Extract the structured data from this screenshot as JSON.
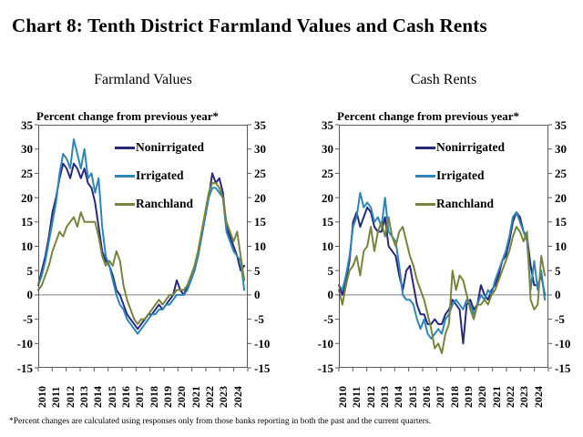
{
  "page_title": "Chart 8: Tenth District Farmland Values and Cash Rents",
  "footnote": "*Percent changes are calculated using responses only from those banks reporting in both the past and the current quarters.",
  "colors": {
    "nonirrigated": "#29297B",
    "irrigated": "#2E86B8",
    "ranchland": "#76843D",
    "axis": "#595959",
    "zero_line": "#808080",
    "text": "#000000"
  },
  "chart_data": [
    {
      "type": "line",
      "title": "Farmland Values",
      "axis_label": "Percent change from previous year*",
      "ylim": [
        -15,
        35
      ],
      "ytick_step": 5,
      "grid": false,
      "legend_position": "upper-right-inside",
      "x_tick_labels": [
        "2010",
        "2011",
        "2012",
        "2013",
        "2014",
        "2015",
        "2016",
        "2017",
        "2018",
        "2019",
        "2020",
        "2021",
        "2022",
        "2023",
        "2024"
      ],
      "x_frequency": "quarterly",
      "series": [
        {
          "name": "Nonirrigated",
          "color_key": "nonirrigated",
          "values": [
            2,
            5,
            8,
            12,
            17,
            20,
            24,
            27,
            26,
            24,
            27,
            26,
            24,
            26,
            23,
            22,
            19,
            14,
            9,
            7,
            6,
            4,
            1,
            0,
            -2,
            -4,
            -5,
            -6,
            -7,
            -6,
            -5,
            -4,
            -4,
            -3,
            -2,
            -3,
            -2,
            -1,
            0,
            3,
            1,
            0,
            2,
            3,
            5,
            8,
            12,
            16,
            20,
            25,
            23,
            24,
            21,
            14,
            12,
            10,
            8,
            5,
            6
          ]
        },
        {
          "name": "Irrigated",
          "color_key": "irrigated",
          "values": [
            2,
            4,
            7,
            11,
            15,
            19,
            25,
            29,
            28,
            26,
            32,
            29,
            26,
            30,
            24,
            25,
            21,
            24,
            14,
            8,
            6,
            3,
            0,
            -2,
            -3,
            -5,
            -6,
            -7,
            -8,
            -7,
            -6,
            -5,
            -4,
            -4,
            -3,
            -3,
            -2,
            -2,
            -1,
            0,
            0,
            0,
            1,
            3,
            5,
            8,
            12,
            16,
            20,
            22,
            22,
            21,
            20,
            13,
            11,
            9,
            8,
            7,
            1
          ]
        },
        {
          "name": "Ranchland",
          "color_key": "ranchland",
          "values": [
            1,
            2,
            4,
            6,
            9,
            11,
            13,
            12,
            14,
            15,
            16,
            14,
            17,
            15,
            15,
            15,
            15,
            12,
            8,
            6,
            7,
            6,
            9,
            7,
            2,
            -1,
            -3,
            -5,
            -6,
            -5,
            -5,
            -4,
            -3,
            -2,
            -1,
            -2,
            -1,
            0,
            0,
            1,
            1,
            1,
            2,
            4,
            6,
            9,
            13,
            17,
            21,
            23,
            23,
            22,
            20,
            15,
            13,
            11,
            13,
            8,
            3
          ]
        }
      ]
    },
    {
      "type": "line",
      "title": "Cash Rents",
      "axis_label": "Percent change from previous year*",
      "ylim": [
        -15,
        35
      ],
      "ytick_step": 5,
      "grid": false,
      "legend_position": "upper-right-inside",
      "x_tick_labels": [
        "2010",
        "2011",
        "2012",
        "2013",
        "2014",
        "2015",
        "2016",
        "2017",
        "2018",
        "2019",
        "2020",
        "2021",
        "2022",
        "2023",
        "2024"
      ],
      "x_frequency": "quarterly",
      "series": [
        {
          "name": "Nonirrigated",
          "color_key": "nonirrigated",
          "values": [
            2,
            0,
            3,
            7,
            15,
            17,
            14,
            16,
            18,
            17,
            14,
            13,
            13,
            16,
            10,
            9,
            8,
            4,
            1,
            5,
            6,
            2,
            -2,
            -4,
            -4,
            -6,
            -6,
            -5,
            -6,
            -6,
            -4,
            -3,
            -1,
            -2,
            -3,
            -10,
            -2,
            -1,
            -3,
            -2,
            2,
            0,
            -1,
            1,
            2,
            4,
            7,
            8,
            11,
            15,
            17,
            16,
            13,
            12,
            6,
            2,
            2,
            4,
            0
          ]
        },
        {
          "name": "Irrigated",
          "color_key": "irrigated",
          "values": [
            2,
            1,
            4,
            8,
            14,
            16,
            21,
            18,
            19,
            18,
            15,
            16,
            14,
            20,
            13,
            12,
            11,
            6,
            0,
            -1,
            -1,
            -2,
            -5,
            -7,
            -5,
            -8,
            -9,
            -8,
            -7,
            -8,
            -5,
            -4,
            -2,
            -1,
            -2,
            -3,
            -1,
            -2,
            -4,
            -2,
            0,
            -1,
            1,
            0,
            3,
            5,
            7,
            9,
            12,
            16,
            17,
            15,
            13,
            11,
            1,
            7,
            1,
            5,
            -1
          ]
        },
        {
          "name": "Ranchland",
          "color_key": "ranchland",
          "values": [
            1,
            -2,
            2,
            5,
            6,
            8,
            4,
            9,
            10,
            14,
            9,
            13,
            15,
            12,
            16,
            12,
            10,
            13,
            14,
            11,
            8,
            6,
            3,
            1,
            -1,
            -4,
            -7,
            -11,
            -10,
            -12,
            -8,
            -6,
            5,
            1,
            4,
            3,
            0,
            -3,
            -5,
            -2,
            -2,
            -1,
            -2,
            0,
            1,
            3,
            5,
            7,
            9,
            12,
            14,
            13,
            11,
            13,
            -1,
            -3,
            -2,
            8,
            4
          ]
        }
      ]
    }
  ]
}
